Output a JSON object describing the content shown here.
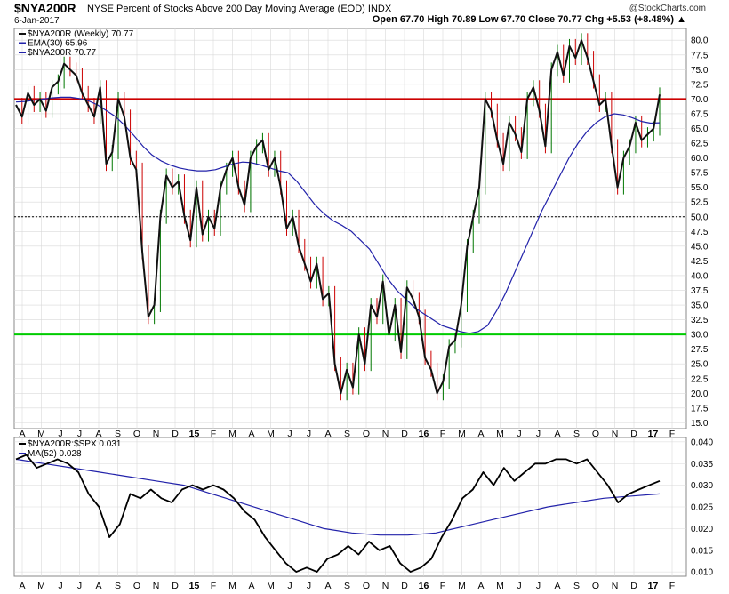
{
  "header": {
    "symbol": "$NYA200R",
    "description": "NYSE Percent of Stocks Above 200 Day Moving Average (EOD) INDX",
    "copyright": "@StockCharts.com",
    "date": "6-Jan-2017",
    "ohlc": "Open 67.70  High 70.89  Low 67.70  Close 70.77  Chg +5.53 (+8.48%) ▲"
  },
  "colors": {
    "price": "#111111",
    "up_bar": "#007700",
    "down_bar": "#cc0000",
    "ema": "#2222aa",
    "resistance": "#cc0000",
    "support": "#00cc00",
    "grid": "#d9d9d9",
    "ratio": "#000000",
    "ratio_ma": "#2222aa"
  },
  "chart_data": [
    {
      "type": "line",
      "title": "$NYA200R NYSE Percent of Stocks Above 200 Day Moving Average (EOD) INDX",
      "legend": [
        "$NYA200R (Weekly) 70.77",
        "EMA(30) 65.96",
        "$NYA200R 70.77"
      ],
      "legend_position": "top-left",
      "x_labels": [
        "A",
        "M",
        "J",
        "J",
        "A",
        "S",
        "O",
        "N",
        "D",
        "15",
        "F",
        "M",
        "A",
        "M",
        "J",
        "J",
        "A",
        "S",
        "O",
        "N",
        "D",
        "16",
        "F",
        "M",
        "A",
        "M",
        "J",
        "J",
        "A",
        "S",
        "O",
        "N",
        "D",
        "17",
        "F"
      ],
      "ylim": [
        14,
        82
      ],
      "y_ticks": [
        15.0,
        17.5,
        20.0,
        22.5,
        25.0,
        27.5,
        30.0,
        32.5,
        35.0,
        37.5,
        40.0,
        42.5,
        45.0,
        47.5,
        50.0,
        52.5,
        55.0,
        57.5,
        60.0,
        62.5,
        65.0,
        67.5,
        70.0,
        72.5,
        75.0,
        77.5,
        80.0
      ],
      "grid": true,
      "reference_lines": [
        {
          "value": 70,
          "color": "#cc0000"
        },
        {
          "value": 50,
          "style": "dotted"
        },
        {
          "value": 30,
          "color": "#00cc00"
        }
      ],
      "series": [
        {
          "name": "$NYA200R",
          "values": [
            69,
            67,
            71,
            69,
            70,
            68,
            72,
            73,
            76,
            75,
            74,
            71,
            69,
            67,
            72,
            59,
            61,
            70,
            67,
            60,
            58,
            44,
            33,
            35,
            50,
            57,
            55,
            56,
            50,
            46,
            55,
            47,
            50,
            48,
            55,
            58,
            60,
            55,
            52,
            60,
            62,
            63,
            58,
            60,
            55,
            48,
            50,
            45,
            42,
            39,
            42,
            36,
            37,
            25,
            20,
            24,
            21,
            30,
            25,
            35,
            33,
            39,
            30,
            35,
            27,
            38,
            36,
            33,
            26,
            24,
            20,
            22,
            28,
            29,
            35,
            45,
            50,
            55,
            70,
            68,
            63,
            59,
            66,
            64,
            61,
            70,
            72,
            68,
            62,
            75,
            78,
            74,
            79,
            77,
            80,
            77,
            73,
            69,
            70,
            62,
            55,
            60,
            62,
            66,
            63,
            64,
            65,
            70.77
          ]
        },
        {
          "name": "EMA(30)",
          "values": [
            69.5,
            69.6,
            69.8,
            70,
            70.2,
            70.3,
            70.3,
            70.1,
            69.7,
            69,
            68,
            67,
            65.5,
            63.8,
            62,
            60.5,
            59.5,
            58.8,
            58.3,
            58,
            57.8,
            57.8,
            58,
            58.5,
            59,
            59.3,
            59.2,
            58.8,
            58.3,
            57.8,
            57.5,
            56,
            54,
            52,
            50.5,
            49.3,
            48.5,
            47.5,
            46,
            44.5,
            42,
            39.5,
            37.5,
            36,
            34.5,
            33.5,
            32.5,
            31.5,
            31,
            30.5,
            30.2,
            30.5,
            31.5,
            34,
            37,
            40.5,
            44,
            47.5,
            51,
            54,
            57,
            60,
            62.5,
            64.5,
            66,
            67,
            67.5,
            67.3,
            66.8,
            66.2,
            65.9,
            65.96
          ]
        },
        {
          "name": "$NYA200R",
          "values": [
            69,
            67,
            71,
            69,
            70,
            68,
            72,
            73,
            76,
            75,
            74,
            71,
            69,
            67,
            72,
            59,
            61,
            70,
            67,
            60,
            58,
            44,
            33,
            35,
            50,
            57,
            55,
            56,
            50,
            46,
            55,
            47,
            50,
            48,
            55,
            58,
            60,
            55,
            52,
            60,
            62,
            63,
            58,
            60,
            55,
            48,
            50,
            45,
            42,
            39,
            42,
            36,
            37,
            25,
            20,
            24,
            21,
            30,
            25,
            35,
            33,
            39,
            30,
            35,
            27,
            38,
            36,
            33,
            26,
            24,
            20,
            22,
            28,
            29,
            35,
            45,
            50,
            55,
            70,
            68,
            63,
            59,
            66,
            64,
            61,
            70,
            72,
            68,
            62,
            75,
            78,
            74,
            79,
            77,
            80,
            77,
            73,
            69,
            70,
            62,
            55,
            60,
            62,
            66,
            63,
            64,
            65,
            70.77
          ]
        }
      ]
    },
    {
      "type": "line",
      "legend": [
        "$NYA200R:$SPX 0.031",
        "MA(52) 0.028"
      ],
      "legend_position": "top-left",
      "x_labels": [
        "A",
        "M",
        "J",
        "J",
        "A",
        "S",
        "O",
        "N",
        "D",
        "15",
        "F",
        "M",
        "A",
        "M",
        "J",
        "J",
        "A",
        "S",
        "O",
        "N",
        "D",
        "16",
        "F",
        "M",
        "A",
        "M",
        "J",
        "J",
        "A",
        "S",
        "O",
        "N",
        "D",
        "17",
        "F"
      ],
      "ylim": [
        0.009,
        0.041
      ],
      "y_ticks": [
        0.01,
        0.015,
        0.02,
        0.025,
        0.03,
        0.035,
        0.04
      ],
      "grid": true,
      "series": [
        {
          "name": "$NYA200R:$SPX",
          "values": [
            0.036,
            0.037,
            0.034,
            0.035,
            0.036,
            0.035,
            0.033,
            0.028,
            0.025,
            0.018,
            0.021,
            0.028,
            0.027,
            0.029,
            0.027,
            0.026,
            0.029,
            0.03,
            0.029,
            0.03,
            0.029,
            0.027,
            0.024,
            0.022,
            0.018,
            0.015,
            0.012,
            0.01,
            0.011,
            0.01,
            0.013,
            0.014,
            0.016,
            0.014,
            0.017,
            0.015,
            0.016,
            0.012,
            0.01,
            0.011,
            0.013,
            0.018,
            0.022,
            0.027,
            0.029,
            0.033,
            0.03,
            0.034,
            0.031,
            0.033,
            0.035,
            0.035,
            0.036,
            0.036,
            0.035,
            0.036,
            0.033,
            0.03,
            0.026,
            0.028,
            0.029,
            0.03,
            0.031
          ]
        },
        {
          "name": "MA(52)",
          "values": [
            0.036,
            0.035,
            0.034,
            0.033,
            0.032,
            0.031,
            0.03,
            0.028,
            0.026,
            0.024,
            0.022,
            0.02,
            0.019,
            0.0185,
            0.0185,
            0.019,
            0.0205,
            0.022,
            0.0235,
            0.025,
            0.026,
            0.027,
            0.0275,
            0.028
          ]
        }
      ]
    }
  ]
}
